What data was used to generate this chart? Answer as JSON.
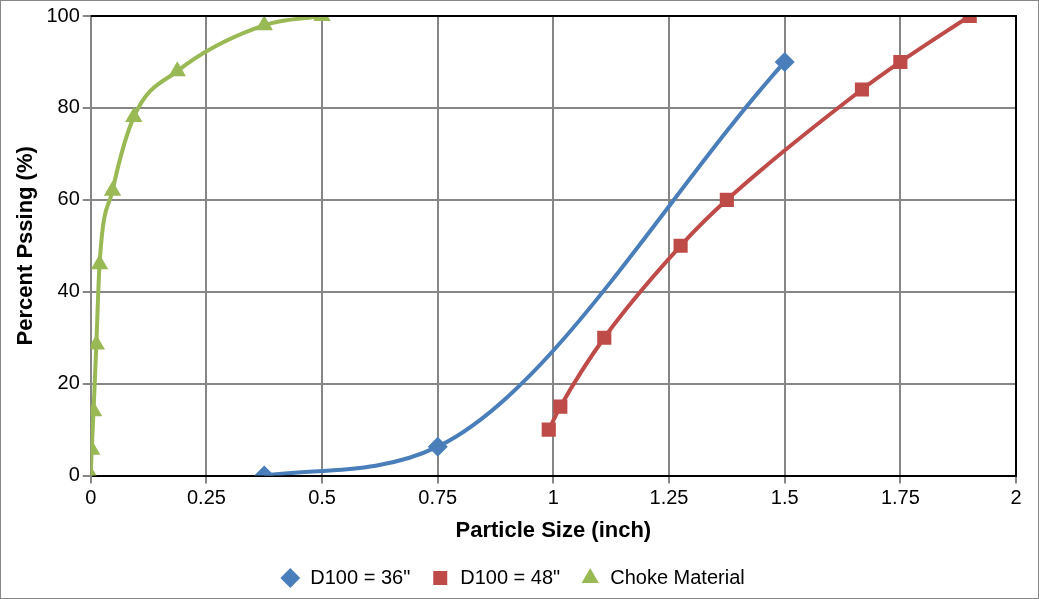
{
  "chart_data": {
    "type": "line",
    "xlabel": "Particle Size (inch)",
    "ylabel": "Percent Pssing (%)",
    "xlim": [
      0,
      2
    ],
    "xticks": [
      0,
      0.25,
      0.5,
      0.75,
      1,
      1.25,
      1.5,
      1.75,
      2
    ],
    "ylim": [
      0,
      100
    ],
    "yticks": [
      0,
      20,
      40,
      60,
      80,
      100
    ],
    "grid": true,
    "legend": "bottom",
    "series": [
      {
        "name": "D100 = 36\"",
        "color": "#4a7ebb",
        "marker": "diamond",
        "x": [
          0.375,
          0.75,
          1.5
        ],
        "values": [
          0,
          6.3,
          90
        ]
      },
      {
        "name": "D100 = 48\"",
        "color": "#be4b48",
        "marker": "square",
        "x": [
          0.99,
          1.015,
          1.11,
          1.275,
          1.375,
          1.667,
          1.75,
          1.9
        ],
        "values": [
          10,
          15,
          30,
          50,
          60,
          84,
          90,
          100
        ]
      },
      {
        "name": "Choke Material",
        "color": "#98b954",
        "marker": "triangle",
        "x": [
          0,
          0.002,
          0.006,
          0.012,
          0.019,
          0.047,
          0.093,
          0.187,
          0.375,
          0.5
        ],
        "values": [
          0,
          5.6,
          14,
          28.5,
          46,
          62,
          78,
          88,
          98,
          100
        ]
      }
    ]
  }
}
